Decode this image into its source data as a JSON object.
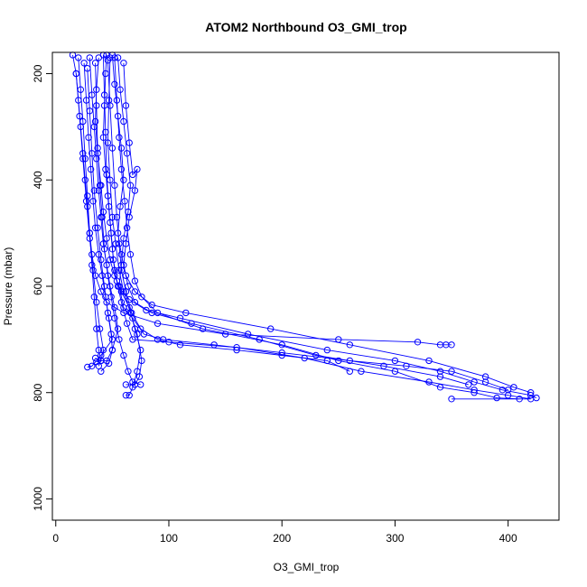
{
  "chart_data": {
    "type": "scatter",
    "title": "ATOM2 Northbound O3_GMI_trop",
    "xlabel": "O3_GMI_trop",
    "ylabel": "Pressure (mbar)",
    "xlim": [
      -3,
      445
    ],
    "ylim": [
      1040,
      160
    ],
    "y_reversed": true,
    "grid": false,
    "x_ticks": [
      0,
      100,
      200,
      300,
      400
    ],
    "y_ticks": [
      200,
      400,
      600,
      800,
      1000
    ],
    "series_color": "#0000ff",
    "marker": "open-circle",
    "series": [
      {
        "points": [
          [
            15,
            165
          ],
          [
            18,
            200
          ],
          [
            20,
            250
          ],
          [
            22,
            300
          ],
          [
            24,
            350
          ],
          [
            26,
            400
          ],
          [
            28,
            450
          ],
          [
            30,
            500
          ],
          [
            32,
            540
          ],
          [
            35,
            580
          ],
          [
            40,
            610
          ],
          [
            45,
            630
          ],
          [
            60,
            650
          ],
          [
            90,
            670
          ],
          [
            150,
            690
          ],
          [
            250,
            700
          ],
          [
            320,
            705
          ],
          [
            340,
            710
          ],
          [
            345,
            710
          ],
          [
            350,
            710
          ]
        ]
      },
      {
        "points": [
          [
            45,
            165
          ],
          [
            44,
            200
          ],
          [
            43,
            260
          ],
          [
            42,
            320
          ],
          [
            44,
            380
          ],
          [
            46,
            430
          ],
          [
            48,
            480
          ],
          [
            50,
            530
          ],
          [
            52,
            570
          ],
          [
            55,
            600
          ],
          [
            65,
            625
          ],
          [
            80,
            645
          ],
          [
            110,
            660
          ],
          [
            170,
            690
          ],
          [
            240,
            720
          ],
          [
            300,
            740
          ],
          [
            340,
            760
          ],
          [
            370,
            780
          ],
          [
            395,
            795
          ],
          [
            420,
            805
          ],
          [
            425,
            810
          ]
        ]
      },
      {
        "points": [
          [
            50,
            165
          ],
          [
            52,
            220
          ],
          [
            55,
            280
          ],
          [
            58,
            340
          ],
          [
            60,
            400
          ],
          [
            57,
            450
          ],
          [
            55,
            500
          ],
          [
            58,
            540
          ],
          [
            62,
            580
          ],
          [
            70,
            610
          ],
          [
            85,
            635
          ],
          [
            115,
            650
          ],
          [
            190,
            680
          ],
          [
            260,
            710
          ],
          [
            330,
            740
          ],
          [
            380,
            770
          ],
          [
            405,
            790
          ],
          [
            420,
            800
          ]
        ]
      },
      {
        "points": [
          [
            38,
            170
          ],
          [
            36,
            230
          ],
          [
            35,
            290
          ],
          [
            37,
            350
          ],
          [
            40,
            410
          ],
          [
            42,
            460
          ],
          [
            45,
            510
          ],
          [
            48,
            550
          ],
          [
            52,
            580
          ],
          [
            58,
            610
          ],
          [
            65,
            640
          ],
          [
            70,
            680
          ],
          [
            75,
            720
          ],
          [
            72,
            760
          ],
          [
            68,
            790
          ],
          [
            65,
            805
          ],
          [
            62,
            805
          ]
        ]
      },
      {
        "points": [
          [
            30,
            170
          ],
          [
            32,
            240
          ],
          [
            34,
            300
          ],
          [
            36,
            360
          ],
          [
            38,
            420
          ],
          [
            40,
            470
          ],
          [
            42,
            520
          ],
          [
            45,
            560
          ],
          [
            48,
            600
          ],
          [
            52,
            640
          ],
          [
            55,
            680
          ],
          [
            50,
            720
          ],
          [
            45,
            740
          ],
          [
            40,
            740
          ],
          [
            35,
            735
          ]
        ]
      },
      {
        "points": [
          [
            25,
            180
          ],
          [
            27,
            250
          ],
          [
            29,
            320
          ],
          [
            31,
            380
          ],
          [
            33,
            440
          ],
          [
            35,
            490
          ],
          [
            38,
            540
          ],
          [
            41,
            580
          ],
          [
            44,
            620
          ],
          [
            47,
            660
          ],
          [
            50,
            700
          ],
          [
            40,
            730
          ],
          [
            32,
            750
          ],
          [
            28,
            752
          ]
        ]
      },
      {
        "points": [
          [
            55,
            170
          ],
          [
            57,
            230
          ],
          [
            60,
            290
          ],
          [
            63,
            350
          ],
          [
            66,
            410
          ],
          [
            64,
            460
          ],
          [
            60,
            510
          ],
          [
            58,
            560
          ],
          [
            56,
            600
          ],
          [
            60,
            640
          ],
          [
            68,
            660
          ],
          [
            78,
            690
          ],
          [
            95,
            700
          ],
          [
            140,
            710
          ],
          [
            200,
            725
          ],
          [
            260,
            740
          ],
          [
            310,
            750
          ],
          [
            350,
            760
          ],
          [
            380,
            780
          ],
          [
            400,
            795
          ]
        ]
      },
      {
        "points": [
          [
            20,
            170
          ],
          [
            22,
            230
          ],
          [
            24,
            290
          ],
          [
            26,
            360
          ],
          [
            28,
            430
          ],
          [
            30,
            500
          ],
          [
            32,
            560
          ],
          [
            34,
            620
          ],
          [
            36,
            680
          ],
          [
            38,
            720
          ],
          [
            40,
            740
          ],
          [
            38,
            750
          ]
        ]
      },
      {
        "points": [
          [
            48,
            170
          ],
          [
            47,
            250
          ],
          [
            46,
            330
          ],
          [
            48,
            400
          ],
          [
            50,
            470
          ],
          [
            53,
            520
          ],
          [
            56,
            570
          ],
          [
            60,
            610
          ],
          [
            66,
            650
          ],
          [
            72,
            690
          ],
          [
            76,
            740
          ],
          [
            74,
            770
          ],
          [
            70,
            785
          ],
          [
            62,
            785
          ]
        ]
      },
      {
        "points": [
          [
            42,
            165
          ],
          [
            43,
            240
          ],
          [
            44,
            310
          ],
          [
            45,
            390
          ],
          [
            47,
            450
          ],
          [
            49,
            500
          ],
          [
            51,
            550
          ],
          [
            54,
            590
          ],
          [
            58,
            630
          ],
          [
            63,
            670
          ],
          [
            68,
            700
          ],
          [
            100,
            705
          ],
          [
            160,
            715
          ],
          [
            220,
            735
          ],
          [
            270,
            760
          ],
          [
            330,
            780
          ],
          [
            370,
            795
          ],
          [
            400,
            805
          ],
          [
            420,
            812
          ],
          [
            350,
            812
          ]
        ]
      },
      {
        "points": [
          [
            60,
            180
          ],
          [
            62,
            260
          ],
          [
            65,
            330
          ],
          [
            68,
            390
          ],
          [
            72,
            380
          ],
          [
            70,
            420
          ],
          [
            65,
            470
          ],
          [
            62,
            520
          ],
          [
            60,
            560
          ],
          [
            64,
            600
          ],
          [
            70,
            630
          ],
          [
            85,
            650
          ],
          [
            120,
            670
          ],
          [
            180,
            700
          ],
          [
            230,
            730
          ],
          [
            290,
            750
          ],
          [
            340,
            770
          ],
          [
            365,
            785
          ]
        ]
      },
      {
        "points": [
          [
            35,
            180
          ],
          [
            36,
            260
          ],
          [
            37,
            340
          ],
          [
            39,
            410
          ],
          [
            41,
            470
          ],
          [
            43,
            530
          ],
          [
            46,
            580
          ],
          [
            49,
            620
          ],
          [
            52,
            660
          ],
          [
            56,
            700
          ],
          [
            60,
            730
          ],
          [
            64,
            760
          ],
          [
            68,
            780
          ],
          [
            75,
            785
          ]
        ]
      },
      {
        "points": [
          [
            28,
            190
          ],
          [
            30,
            270
          ],
          [
            32,
            350
          ],
          [
            34,
            420
          ],
          [
            37,
            490
          ],
          [
            40,
            550
          ],
          [
            43,
            600
          ],
          [
            46,
            650
          ],
          [
            49,
            690
          ],
          [
            50,
            720
          ],
          [
            47,
            745
          ],
          [
            40,
            760
          ]
        ]
      },
      {
        "points": [
          [
            52,
            170
          ],
          [
            54,
            250
          ],
          [
            56,
            320
          ],
          [
            58,
            380
          ],
          [
            61,
            440
          ],
          [
            63,
            490
          ],
          [
            66,
            540
          ],
          [
            70,
            590
          ],
          [
            76,
            620
          ],
          [
            90,
            650
          ],
          [
            130,
            680
          ],
          [
            200,
            710
          ],
          [
            250,
            740
          ],
          [
            300,
            760
          ],
          [
            340,
            790
          ],
          [
            370,
            800
          ],
          [
            390,
            810
          ],
          [
            410,
            812
          ]
        ]
      },
      {
        "points": [
          [
            18,
            200
          ],
          [
            21,
            280
          ],
          [
            24,
            360
          ],
          [
            27,
            440
          ],
          [
            30,
            510
          ],
          [
            33,
            570
          ],
          [
            36,
            630
          ],
          [
            39,
            680
          ],
          [
            42,
            720
          ],
          [
            40,
            740
          ],
          [
            36,
            742
          ]
        ]
      },
      {
        "points": [
          [
            46,
            175
          ],
          [
            48,
            260
          ],
          [
            50,
            340
          ],
          [
            52,
            410
          ],
          [
            54,
            470
          ],
          [
            56,
            520
          ],
          [
            58,
            570
          ],
          [
            62,
            610
          ],
          [
            67,
            650
          ],
          [
            75,
            680
          ],
          [
            90,
            700
          ],
          [
            110,
            710
          ],
          [
            160,
            720
          ],
          [
            200,
            730
          ],
          [
            240,
            740
          ],
          [
            260,
            760
          ]
        ]
      }
    ]
  }
}
